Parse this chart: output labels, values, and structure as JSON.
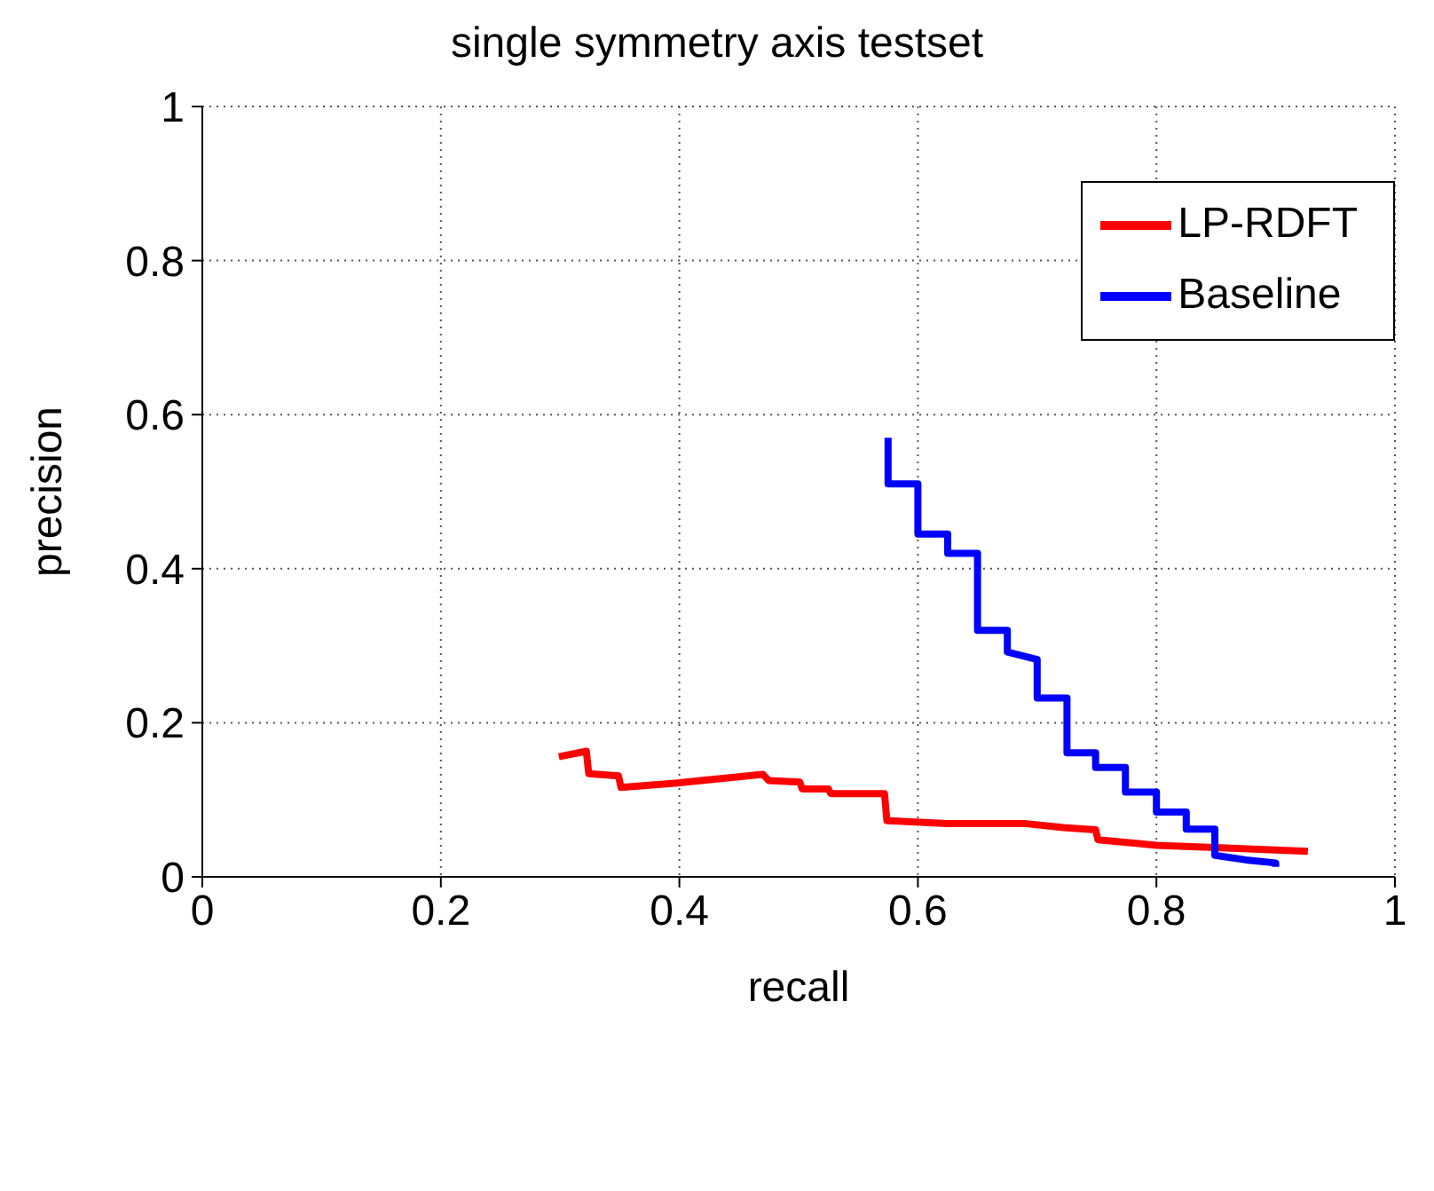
{
  "chart_data": {
    "type": "line",
    "title": "single symmetry axis testset",
    "xlabel": "recall",
    "ylabel": "precision",
    "xlim": [
      0,
      1
    ],
    "ylim": [
      0,
      1
    ],
    "xticks": [
      0,
      0.2,
      0.4,
      0.6,
      0.8,
      1
    ],
    "yticks": [
      0,
      0.2,
      0.4,
      0.6,
      0.8,
      1
    ],
    "grid": true,
    "legend": "top right",
    "marker": "none",
    "line_style": "solid",
    "series": [
      {
        "name": "LP-RDFT",
        "color": "#ff0000",
        "x": [
          0.299,
          0.322,
          0.324,
          0.349,
          0.351,
          0.4,
          0.47,
          0.475,
          0.501,
          0.503,
          0.525,
          0.527,
          0.572,
          0.574,
          0.625,
          0.691,
          0.722,
          0.749,
          0.751,
          0.8,
          0.849,
          0.927
        ],
        "values": [
          0.156,
          0.163,
          0.134,
          0.131,
          0.116,
          0.122,
          0.133,
          0.125,
          0.123,
          0.114,
          0.114,
          0.108,
          0.108,
          0.073,
          0.069,
          0.069,
          0.064,
          0.061,
          0.048,
          0.041,
          0.038,
          0.033
        ]
      },
      {
        "name": "Baseline",
        "color": "#0000ff",
        "x": [
          0.575,
          0.575,
          0.6,
          0.6,
          0.625,
          0.625,
          0.65,
          0.65,
          0.675,
          0.675,
          0.7,
          0.7,
          0.725,
          0.725,
          0.749,
          0.749,
          0.774,
          0.774,
          0.8,
          0.8,
          0.825,
          0.825,
          0.849,
          0.849,
          0.875,
          0.9,
          0.9
        ],
        "values": [
          0.57,
          0.51,
          0.51,
          0.445,
          0.445,
          0.42,
          0.42,
          0.32,
          0.32,
          0.292,
          0.282,
          0.232,
          0.232,
          0.161,
          0.161,
          0.142,
          0.142,
          0.11,
          0.11,
          0.084,
          0.084,
          0.062,
          0.062,
          0.028,
          0.022,
          0.018,
          0.013
        ]
      }
    ]
  }
}
